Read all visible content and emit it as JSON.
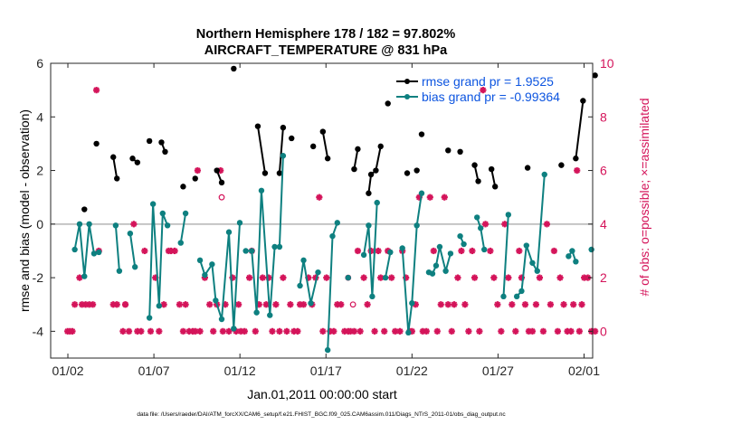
{
  "chart_data": {
    "type": "line",
    "title": [
      "Northern Hemisphere 178 / 182 = 97.802%",
      "AIRCRAFT_TEMPERATURE @ 831 hPa"
    ],
    "xlabel": "Jan.01,2011 00:00:00 start",
    "ylabel_left": "rmse and bias (model - observation)",
    "ylabel_right": "# of obs: o=possible; ×=assimilated",
    "xlim": [
      "2011-01-01 00:00",
      "2011-02-01 12:00"
    ],
    "ylim_left": [
      -5,
      6
    ],
    "ylim_right": [
      -1,
      10
    ],
    "xticks": [
      "01/02",
      "01/07",
      "01/12",
      "01/17",
      "01/22",
      "01/27",
      "02/01"
    ],
    "yticks_left": [
      "-4",
      "-2",
      "0",
      "2",
      "4",
      "6"
    ],
    "yticks_right": [
      "0",
      "2",
      "4",
      "6",
      "8",
      "10"
    ],
    "zero_line": 0,
    "colors": {
      "rmse": "#000000",
      "bias": "#0e8080",
      "obs": "#d4145a",
      "zero": "#b4b4b4",
      "legend_text": "#0d55e0"
    },
    "legend": {
      "placement": "top-right"
    },
    "series": [
      {
        "name": "rmse grand pr = 1.9525",
        "axis": "left",
        "color": "#000000",
        "segments": [
          [
            [
              1.4,
              0.55
            ]
          ],
          [
            [
              1.9,
              3.0
            ]
          ],
          [
            [
              2.6,
              2.5
            ],
            [
              2.75,
              1.7
            ]
          ],
          [
            [
              3.4,
              2.45
            ],
            [
              3.6,
              2.3
            ]
          ],
          [
            [
              4.1,
              3.1
            ]
          ],
          [
            [
              4.6,
              3.05
            ],
            [
              4.75,
              2.7
            ]
          ],
          [
            [
              5.5,
              1.4
            ]
          ],
          [
            [
              6.0,
              1.7
            ]
          ],
          [
            [
              6.9,
              2.0
            ],
            [
              7.1,
              1.55
            ]
          ],
          [
            [
              7.6,
              5.8
            ]
          ],
          [
            [
              8.6,
              3.65
            ],
            [
              8.9,
              1.9
            ]
          ],
          [
            [
              9.5,
              1.9
            ],
            [
              9.65,
              3.6
            ]
          ],
          [
            [
              10.0,
              3.2
            ]
          ],
          [
            [
              10.9,
              2.9
            ]
          ],
          [
            [
              11.3,
              3.45
            ],
            [
              11.5,
              2.45
            ]
          ],
          [
            [
              12.6,
              2.05
            ],
            [
              12.75,
              2.8
            ]
          ],
          [
            [
              13.2,
              1.15
            ],
            [
              13.3,
              1.85
            ],
            [
              13.5,
              2.0
            ],
            [
              13.7,
              2.9
            ]
          ],
          [
            [
              14.0,
              4.5
            ]
          ],
          [
            [
              14.8,
              1.9
            ]
          ],
          [
            [
              15.2,
              2.0
            ]
          ],
          [
            [
              15.4,
              3.35
            ]
          ],
          [
            [
              16.5,
              2.75
            ]
          ],
          [
            [
              17.0,
              2.7
            ]
          ],
          [
            [
              17.6,
              2.2
            ],
            [
              17.75,
              1.6
            ]
          ],
          [
            [
              18.3,
              2.05
            ],
            [
              18.45,
              1.4
            ]
          ],
          [
            [
              19.8,
              2.1
            ]
          ],
          [
            [
              21.2,
              2.2
            ]
          ],
          [
            [
              21.8,
              2.45
            ],
            [
              22.1,
              4.6
            ]
          ],
          [
            [
              22.6,
              5.55
            ]
          ]
        ]
      },
      {
        "name": "bias grand pr = -0.99364",
        "axis": "left",
        "color": "#0e8080",
        "segments": [
          [
            [
              1.0,
              -0.95
            ],
            [
              1.2,
              0.0
            ],
            [
              1.4,
              -1.95
            ],
            [
              1.6,
              0.0
            ],
            [
              1.8,
              -1.1
            ],
            [
              2.0,
              -1.05
            ]
          ],
          [
            [
              2.7,
              -0.05
            ],
            [
              2.85,
              -1.75
            ]
          ],
          [
            [
              3.3,
              -0.35
            ],
            [
              3.5,
              -1.6
            ]
          ],
          [
            [
              4.1,
              -3.5
            ],
            [
              4.25,
              0.75
            ],
            [
              4.5,
              -3.05
            ],
            [
              4.65,
              0.4
            ],
            [
              4.85,
              -0.05
            ]
          ],
          [
            [
              5.4,
              -0.7
            ],
            [
              5.6,
              0.4
            ]
          ],
          [
            [
              6.2,
              -1.35
            ],
            [
              6.4,
              -1.9
            ],
            [
              6.7,
              -1.5
            ],
            [
              6.85,
              -2.85
            ],
            [
              7.1,
              -3.55
            ],
            [
              7.4,
              -0.3
            ],
            [
              7.6,
              -3.9
            ],
            [
              7.85,
              0.05
            ]
          ],
          [
            [
              8.1,
              -1.0
            ],
            [
              8.35,
              -1.0
            ],
            [
              8.55,
              -3.3
            ],
            [
              8.75,
              1.25
            ],
            [
              9.1,
              -3.4
            ],
            [
              9.3,
              -0.85
            ],
            [
              9.5,
              -0.85
            ],
            [
              9.65,
              2.55
            ]
          ],
          [
            [
              10.35,
              -2.3
            ],
            [
              10.5,
              -1.35
            ],
            [
              10.8,
              -2.95
            ],
            [
              11.1,
              -1.8
            ]
          ],
          [
            [
              11.5,
              -4.7
            ],
            [
              11.7,
              -0.45
            ],
            [
              11.9,
              0.05
            ]
          ],
          [
            [
              12.35,
              -2.0
            ]
          ],
          [
            [
              13.0,
              -1.15
            ],
            [
              13.2,
              -0.05
            ],
            [
              13.35,
              -2.7
            ],
            [
              13.55,
              0.8
            ]
          ],
          [
            [
              13.9,
              -2.0
            ],
            [
              14.1,
              -1.05
            ]
          ],
          [
            [
              14.6,
              -0.9
            ],
            [
              14.85,
              -4.05
            ],
            [
              15.0,
              -2.95
            ],
            [
              15.2,
              -0.05
            ],
            [
              15.4,
              1.15
            ]
          ],
          [
            [
              15.7,
              -1.8
            ],
            [
              15.85,
              -1.85
            ],
            [
              16.0,
              -1.55
            ],
            [
              16.15,
              -0.85
            ],
            [
              16.4,
              -1.75
            ],
            [
              16.6,
              -1.1
            ]
          ],
          [
            [
              17.0,
              -0.45
            ],
            [
              17.15,
              -0.75
            ]
          ],
          [
            [
              17.7,
              0.25
            ],
            [
              17.85,
              -0.15
            ],
            [
              18.0,
              -0.95
            ]
          ],
          [
            [
              18.8,
              -2.7
            ],
            [
              19.0,
              0.35
            ]
          ],
          [
            [
              19.35,
              -2.7
            ],
            [
              19.55,
              -2.5
            ],
            [
              19.75,
              -0.8
            ],
            [
              20.0,
              -1.45
            ],
            [
              20.2,
              -1.75
            ],
            [
              20.5,
              1.85
            ]
          ],
          [
            [
              21.5,
              -1.2
            ],
            [
              21.65,
              -1.0
            ],
            [
              21.8,
              -1.4
            ]
          ],
          [
            [
              22.45,
              -0.95
            ]
          ]
        ]
      },
      {
        "name": "possible",
        "axis": "right",
        "color": "#d4145a",
        "marker": "o",
        "points": [
          [
            7.1,
            5.0
          ],
          [
            12.35,
            2.0
          ],
          [
            12.55,
            1.0
          ],
          [
            3.1,
            1.0
          ]
        ]
      },
      {
        "name": "assimilated",
        "axis": "right",
        "color": "#d4145a",
        "marker": "x",
        "points": [
          [
            0.7,
            0
          ],
          [
            0.8,
            0
          ],
          [
            0.9,
            0
          ],
          [
            1.0,
            1
          ],
          [
            1.2,
            2
          ],
          [
            1.3,
            1
          ],
          [
            1.45,
            1
          ],
          [
            1.6,
            1
          ],
          [
            1.75,
            1
          ],
          [
            1.9,
            9
          ],
          [
            2.0,
            3
          ],
          [
            2.6,
            1
          ],
          [
            2.75,
            1
          ],
          [
            3.0,
            0
          ],
          [
            3.1,
            1
          ],
          [
            3.25,
            0
          ],
          [
            3.45,
            4
          ],
          [
            3.6,
            0
          ],
          [
            3.75,
            0
          ],
          [
            3.9,
            3
          ],
          [
            4.15,
            0
          ],
          [
            4.35,
            2
          ],
          [
            4.5,
            0
          ],
          [
            4.7,
            1
          ],
          [
            4.9,
            3
          ],
          [
            5.0,
            3
          ],
          [
            5.15,
            3
          ],
          [
            5.35,
            1
          ],
          [
            5.5,
            0
          ],
          [
            5.6,
            1
          ],
          [
            5.75,
            0
          ],
          [
            5.9,
            0
          ],
          [
            6.0,
            0
          ],
          [
            6.1,
            6
          ],
          [
            6.2,
            0
          ],
          [
            6.4,
            2
          ],
          [
            6.6,
            1
          ],
          [
            6.75,
            0
          ],
          [
            6.9,
            1
          ],
          [
            7.05,
            6
          ],
          [
            7.15,
            0
          ],
          [
            7.25,
            1
          ],
          [
            7.4,
            0
          ],
          [
            7.55,
            2
          ],
          [
            7.7,
            0
          ],
          [
            7.8,
            1
          ],
          [
            7.9,
            0
          ],
          [
            8.05,
            0
          ],
          [
            8.25,
            2
          ],
          [
            8.35,
            3
          ],
          [
            8.5,
            0
          ],
          [
            8.65,
            1
          ],
          [
            8.8,
            2
          ],
          [
            8.95,
            1
          ],
          [
            9.05,
            2
          ],
          [
            9.2,
            0
          ],
          [
            9.35,
            1
          ],
          [
            9.5,
            0
          ],
          [
            9.65,
            2
          ],
          [
            9.8,
            0
          ],
          [
            9.95,
            1
          ],
          [
            10.1,
            0
          ],
          [
            10.25,
            0
          ],
          [
            10.35,
            1
          ],
          [
            10.5,
            1
          ],
          [
            10.7,
            2
          ],
          [
            10.85,
            1
          ],
          [
            11.0,
            2
          ],
          [
            11.15,
            5
          ],
          [
            11.3,
            0
          ],
          [
            11.45,
            2
          ],
          [
            11.6,
            0
          ],
          [
            11.75,
            0
          ],
          [
            11.9,
            1
          ],
          [
            12.05,
            1
          ],
          [
            12.2,
            0
          ],
          [
            12.35,
            0
          ],
          [
            12.45,
            0
          ],
          [
            12.6,
            0
          ],
          [
            12.75,
            3
          ],
          [
            12.85,
            0
          ],
          [
            13.0,
            2
          ],
          [
            13.15,
            1
          ],
          [
            13.3,
            3
          ],
          [
            13.45,
            0
          ],
          [
            13.6,
            3
          ],
          [
            13.7,
            2
          ],
          [
            13.85,
            0
          ],
          [
            14.0,
            3
          ],
          [
            14.15,
            2
          ],
          [
            14.3,
            0
          ],
          [
            14.5,
            0
          ],
          [
            14.6,
            3
          ],
          [
            14.75,
            2
          ],
          [
            14.9,
            0
          ],
          [
            15.0,
            0
          ],
          [
            15.15,
            1
          ],
          [
            15.3,
            5
          ],
          [
            15.45,
            0
          ],
          [
            15.6,
            0
          ],
          [
            15.75,
            5
          ],
          [
            15.9,
            3
          ],
          [
            16.05,
            0
          ],
          [
            16.2,
            1
          ],
          [
            16.35,
            5
          ],
          [
            16.5,
            1
          ],
          [
            16.65,
            0
          ],
          [
            16.75,
            1
          ],
          [
            16.9,
            2
          ],
          [
            17.05,
            3
          ],
          [
            17.2,
            1
          ],
          [
            17.35,
            0
          ],
          [
            17.5,
            3
          ],
          [
            17.6,
            2
          ],
          [
            17.8,
            0
          ],
          [
            17.95,
            9
          ],
          [
            18.05,
            4
          ],
          [
            18.25,
            3
          ],
          [
            18.4,
            2
          ],
          [
            18.55,
            1
          ],
          [
            18.7,
            0
          ],
          [
            18.85,
            4
          ],
          [
            19.0,
            2
          ],
          [
            19.15,
            1
          ],
          [
            19.3,
            0
          ],
          [
            19.45,
            3
          ],
          [
            19.55,
            2
          ],
          [
            19.7,
            1
          ],
          [
            19.85,
            0
          ],
          [
            20.0,
            0
          ],
          [
            20.15,
            1
          ],
          [
            20.3,
            2
          ],
          [
            20.45,
            0
          ],
          [
            20.6,
            4
          ],
          [
            20.75,
            1
          ],
          [
            20.9,
            3
          ],
          [
            21.05,
            0
          ],
          [
            21.15,
            2
          ],
          [
            21.3,
            1
          ],
          [
            21.45,
            0
          ],
          [
            21.6,
            0
          ],
          [
            21.7,
            1
          ],
          [
            21.85,
            6
          ],
          [
            21.95,
            0
          ],
          [
            22.05,
            1
          ],
          [
            22.15,
            2
          ],
          [
            22.3,
            2
          ],
          [
            22.45,
            0
          ],
          [
            22.6,
            0
          ]
        ]
      }
    ]
  },
  "footer": "data file: /Users/raeder/DAI/ATM_forcXX/CAM6_setup/f.e21.FHIST_BGC.f09_025.CAM6assim.011/Diags_NTrS_2011-01/obs_diag_output.nc"
}
